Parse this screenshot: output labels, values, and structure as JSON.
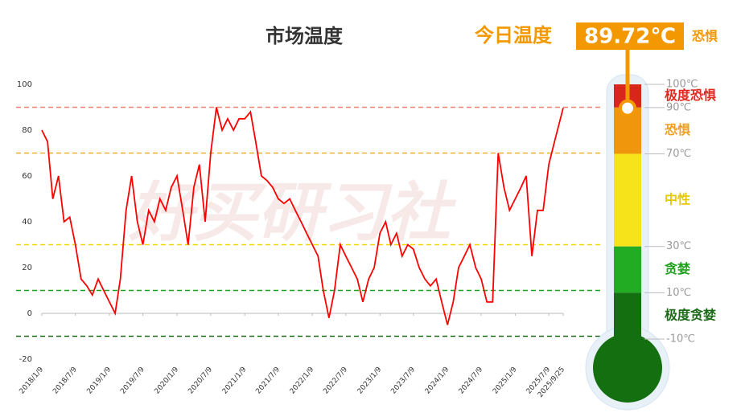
{
  "chart_data": [
    {
      "type": "line",
      "title": "市场温度",
      "watermark": "好买研习社",
      "x": [
        "2018/1/9",
        "2018/2/9",
        "2018/3/9",
        "2018/4/9",
        "2018/5/9",
        "2018/6/9",
        "2018/7/9",
        "2018/8/9",
        "2018/9/9",
        "2018/10/9",
        "2018/11/9",
        "2018/12/9",
        "2019/1/9",
        "2019/2/9",
        "2019/3/9",
        "2019/4/9",
        "2019/5/9",
        "2019/6/9",
        "2019/7/9",
        "2019/8/9",
        "2019/9/9",
        "2019/10/9",
        "2019/11/9",
        "2019/12/9",
        "2020/1/9",
        "2020/2/9",
        "2020/3/9",
        "2020/4/9",
        "2020/5/9",
        "2020/6/9",
        "2020/7/9",
        "2020/8/9",
        "2020/9/9",
        "2020/10/9",
        "2020/11/9",
        "2020/12/9",
        "2021/1/9",
        "2021/2/9",
        "2021/3/9",
        "2021/4/9",
        "2021/5/9",
        "2021/6/9",
        "2021/7/9",
        "2021/8/9",
        "2021/9/9",
        "2021/10/9",
        "2021/11/9",
        "2021/12/9",
        "2022/1/9",
        "2022/2/9",
        "2022/3/9",
        "2022/4/9",
        "2022/5/9",
        "2022/6/9",
        "2022/7/9",
        "2022/8/9",
        "2022/9/9",
        "2022/10/9",
        "2022/11/9",
        "2022/12/9",
        "2023/1/9",
        "2023/2/9",
        "2023/3/9",
        "2023/4/9",
        "2023/5/9",
        "2023/6/9",
        "2023/7/9",
        "2023/8/9",
        "2023/9/9",
        "2023/10/9",
        "2023/11/9",
        "2023/12/9",
        "2024/1/9",
        "2024/2/9",
        "2024/3/9",
        "2024/4/9",
        "2024/5/9",
        "2024/6/9",
        "2024/7/9",
        "2024/8/9",
        "2024/9/9",
        "2024/10/9",
        "2024/11/9",
        "2024/12/9",
        "2025/1/9",
        "2025/2/9",
        "2025/3/9",
        "2025/4/9",
        "2025/5/9",
        "2025/6/9",
        "2025/7/9",
        "2025/8/9",
        "2025/9/25"
      ],
      "series": [
        {
          "name": "市场温度",
          "color": "#ff0000",
          "values": [
            80,
            75,
            50,
            60,
            40,
            42,
            30,
            15,
            12,
            8,
            15,
            10,
            5,
            0,
            15,
            45,
            60,
            40,
            30,
            45,
            40,
            50,
            45,
            55,
            60,
            45,
            30,
            55,
            65,
            40,
            70,
            90,
            80,
            85,
            80,
            85,
            85,
            88,
            75,
            60,
            58,
            55,
            50,
            48,
            50,
            45,
            40,
            35,
            30,
            25,
            10,
            -2,
            10,
            30,
            25,
            20,
            15,
            5,
            15,
            20,
            35,
            40,
            30,
            35,
            25,
            30,
            28,
            20,
            15,
            12,
            15,
            5,
            -5,
            5,
            20,
            25,
            30,
            20,
            15,
            5,
            5,
            70,
            55,
            45,
            50,
            55,
            60,
            25,
            45,
            45,
            65,
            75,
            89.72
          ]
        }
      ],
      "xlim": [
        "2018/1/9",
        "2025/9/25"
      ],
      "xticks": [
        "2018/1/9",
        "2018/7/9",
        "2019/1/9",
        "2019/7/9",
        "2020/1/9",
        "2020/7/9",
        "2021/1/9",
        "2021/7/9",
        "2022/1/9",
        "2022/7/9",
        "2023/1/9",
        "2023/7/9",
        "2024/1/9",
        "2024/7/9",
        "2025/1/9",
        "2025/7/9",
        "2025/9/25"
      ],
      "ylim": [
        -20,
        100
      ],
      "yticks": [
        -20,
        0,
        20,
        40,
        60,
        80,
        100
      ],
      "reference_lines": [
        {
          "value": 90,
          "color": "#f08070"
        },
        {
          "value": 70,
          "color": "#f0b030"
        },
        {
          "value": 30,
          "color": "#f0d800"
        },
        {
          "value": 10,
          "color": "#20a020"
        },
        {
          "value": -10,
          "color": "#1d6a18"
        }
      ]
    },
    {
      "type": "gauge",
      "label": "今日温度",
      "value": 89.72,
      "value_label": "89.72℃",
      "status": "恐惧",
      "ylim": [
        -10,
        100
      ],
      "yticks": [
        {
          "value": 100,
          "label": "100℃"
        },
        {
          "value": 90,
          "label": "90℃"
        },
        {
          "value": 70,
          "label": "70℃"
        },
        {
          "value": 30,
          "label": "30℃"
        },
        {
          "value": 10,
          "label": "10℃"
        },
        {
          "value": -10,
          "label": "-10℃"
        }
      ],
      "zones": [
        {
          "name": "极度恐惧",
          "from": 90,
          "to": 100,
          "color": "#d9261c",
          "label_color": "#e0281e"
        },
        {
          "name": "恐惧",
          "from": 70,
          "to": 90,
          "color": "#f0960c",
          "label_color": "#f0a020"
        },
        {
          "name": "中性",
          "from": 30,
          "to": 70,
          "color": "#f7e31a",
          "label_color": "#e6c800"
        },
        {
          "name": "贪婪",
          "from": 10,
          "to": 30,
          "color": "#22ac23",
          "label_color": "#22a020"
        },
        {
          "name": "极度贪婪",
          "from": -10,
          "to": 10,
          "color": "#146f10",
          "label_color": "#1d6a18"
        }
      ]
    }
  ]
}
